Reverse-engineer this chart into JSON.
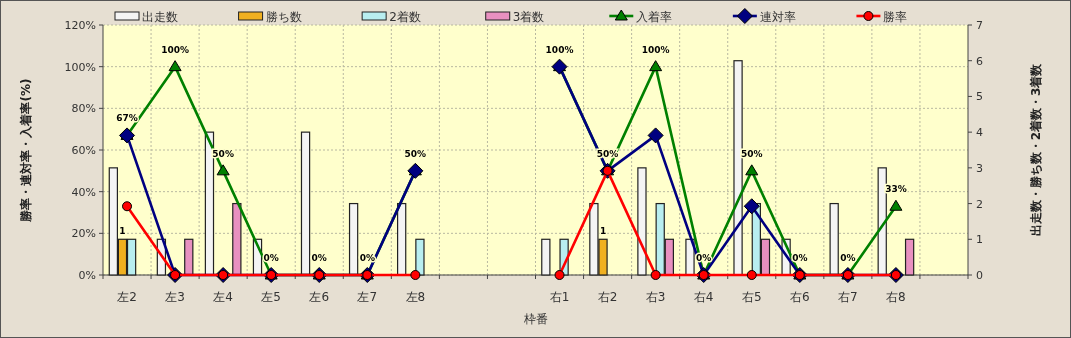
{
  "chart_data": {
    "type": "bar",
    "xlabel": "枠番",
    "ylabel": "勝率・連対率・入着率(%)",
    "y2label": "出走数・勝ち数・2着数・3着数",
    "categories": [
      "左2",
      "左3",
      "左4",
      "左5",
      "左6",
      "左7",
      "左8",
      null,
      null,
      "右1",
      "右2",
      "右3",
      "右4",
      "右5",
      "右6",
      "右7",
      "右8",
      null
    ],
    "ylim": [
      0,
      120
    ],
    "yticks": [
      {
        "value": 0,
        "label": "0%"
      },
      {
        "value": 20,
        "label": "20%"
      },
      {
        "value": 40,
        "label": "40%"
      },
      {
        "value": 60,
        "label": "60%"
      },
      {
        "value": 80,
        "label": "80%"
      },
      {
        "value": 100,
        "label": "100%"
      },
      {
        "value": 120,
        "label": "120%"
      }
    ],
    "y2lim": [
      0,
      7
    ],
    "y2ticks": [
      0,
      1,
      2,
      3,
      4,
      5,
      6,
      7
    ],
    "grid": true,
    "legend": "top",
    "series": [
      {
        "name": "出走数",
        "axis": "y2",
        "color": "#f4f4f4",
        "values": [
          3,
          1,
          4,
          1,
          4,
          2,
          2,
          null,
          null,
          1,
          2,
          3,
          1,
          6,
          1,
          2,
          3,
          null
        ]
      },
      {
        "name": "勝ち数",
        "axis": "y2",
        "color": "#f0b020",
        "values": [
          1,
          0,
          0,
          0,
          0,
          0,
          0,
          null,
          null,
          0,
          1,
          0,
          0,
          0,
          0,
          0,
          0,
          null
        ],
        "value_labels": [
          "1",
          null,
          null,
          null,
          null,
          null,
          null,
          null,
          null,
          null,
          "1",
          null,
          null,
          null,
          null,
          null,
          null,
          null
        ]
      },
      {
        "name": "2着数",
        "axis": "y2",
        "color": "#b8eef0",
        "values": [
          1,
          0,
          0,
          0,
          0,
          0,
          1,
          null,
          null,
          1,
          0,
          2,
          0,
          2,
          0,
          0,
          0,
          null
        ]
      },
      {
        "name": "3着数",
        "axis": "y2",
        "color": "#e890c0",
        "values": [
          0,
          1,
          2,
          0,
          0,
          0,
          0,
          null,
          null,
          0,
          0,
          1,
          0,
          1,
          0,
          0,
          1,
          null
        ]
      },
      {
        "name": "入着率",
        "type": "line",
        "color": "#008000",
        "marker": "triangle",
        "values": [
          67,
          100,
          50,
          0,
          0,
          0,
          50,
          null,
          null,
          100,
          50,
          100,
          0,
          50,
          0,
          0,
          33,
          null
        ],
        "value_labels": [
          "67%",
          "100%",
          "50%",
          "0%",
          "0%",
          "0%",
          "50%",
          null,
          null,
          "100%",
          "50%",
          "100%",
          "0%",
          "50%",
          "0%",
          "0%",
          "33%",
          null
        ]
      },
      {
        "name": "連対率",
        "type": "line",
        "color": "#000080",
        "marker": "diamond",
        "values": [
          67,
          0,
          0,
          0,
          0,
          0,
          50,
          null,
          null,
          100,
          50,
          67,
          0,
          33,
          0,
          0,
          0,
          null
        ]
      },
      {
        "name": "勝率",
        "type": "line",
        "color": "#ff0000",
        "marker": "circle",
        "values": [
          33,
          0,
          0,
          0,
          0,
          0,
          0,
          null,
          null,
          0,
          50,
          0,
          0,
          0,
          0,
          0,
          0,
          null
        ]
      }
    ]
  }
}
